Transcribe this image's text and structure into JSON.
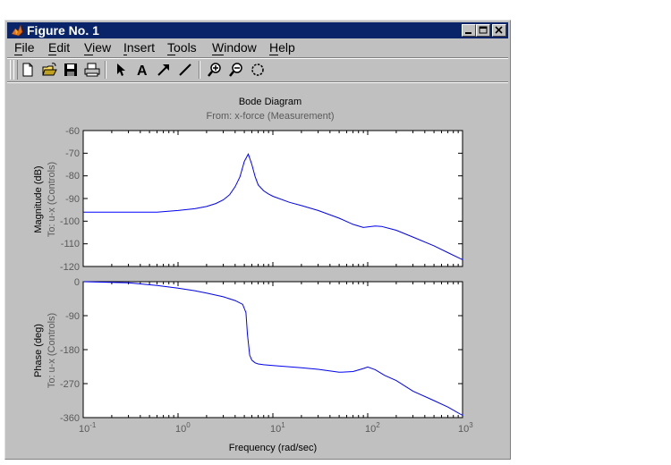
{
  "window": {
    "title": "Figure No. 1"
  },
  "menu": {
    "file": "File",
    "edit": "Edit",
    "view": "View",
    "insert": "Insert",
    "tools": "Tools",
    "window": "Window",
    "help": "Help"
  },
  "toolbar_icons": [
    "new-file-icon",
    "open-folder-icon",
    "save-icon",
    "print-icon",
    "select-arrow-icon",
    "text-insert-icon",
    "arrow-insert-icon",
    "line-insert-icon",
    "zoom-in-icon",
    "zoom-out-icon",
    "rotate-icon"
  ],
  "plot": {
    "title": "Bode Diagram",
    "subtitle": "From: x-force (Measurement)",
    "top_ylabel_1": "Magnitude (dB)",
    "top_ylabel_2": "To: u-x (Controls)",
    "bottom_ylabel_1": "Phase (deg)",
    "bottom_ylabel_2": "To: u-x (Controls)",
    "xlabel": "Frequency (rad/sec)",
    "x_ticks": [
      "10",
      "10",
      "10",
      "10",
      "10"
    ],
    "x_exponents": [
      "-1",
      "0",
      "1",
      "2",
      "3"
    ],
    "mag_ticks": [
      "-60",
      "-70",
      "-80",
      "-90",
      "-100",
      "-110",
      "-120"
    ],
    "phase_ticks": [
      "0",
      "-90",
      "-180",
      "-270",
      "-360"
    ]
  },
  "chart_data": [
    {
      "type": "line",
      "title": "Bode Diagram",
      "subtitle": "From: x-force (Measurement)",
      "xlabel": "Frequency (rad/sec)",
      "ylabel": "Magnitude (dB)",
      "xscale": "log",
      "xlim": [
        0.1,
        1000
      ],
      "ylim": [
        -120,
        -60
      ],
      "color": "#0000ff",
      "x": [
        0.1,
        0.3,
        0.6,
        1,
        1.5,
        2,
        2.5,
        3,
        3.5,
        4,
        4.5,
        5,
        5.5,
        6,
        6.5,
        7,
        8,
        9,
        10,
        15,
        20,
        30,
        50,
        70,
        90,
        100,
        120,
        140,
        200,
        300,
        500,
        700,
        1000
      ],
      "y": [
        -96,
        -96,
        -96,
        -95.3,
        -94.5,
        -93.5,
        -92.2,
        -90.6,
        -88.3,
        -84.8,
        -80.4,
        -73.6,
        -70.4,
        -75,
        -80.4,
        -84,
        -86.6,
        -88,
        -89,
        -91.7,
        -93.1,
        -95.3,
        -98.7,
        -101.4,
        -102.8,
        -102.5,
        -102.1,
        -102.3,
        -104,
        -107,
        -110.9,
        -113.9,
        -117
      ]
    },
    {
      "type": "line",
      "xlabel": "Frequency (rad/sec)",
      "ylabel": "Phase (deg)",
      "xscale": "log",
      "xlim": [
        0.1,
        1000
      ],
      "ylim": [
        -360,
        0
      ],
      "color": "#0000ff",
      "x": [
        0.1,
        0.3,
        0.6,
        1,
        1.5,
        2,
        3,
        4,
        4.8,
        5.2,
        5.4,
        5.7,
        6,
        6.5,
        7,
        8,
        10,
        20,
        30,
        50,
        70,
        90,
        100,
        120,
        150,
        200,
        300,
        500,
        700,
        1000
      ],
      "y": [
        0,
        -3,
        -10,
        -17,
        -24,
        -30,
        -40,
        -50,
        -60,
        -82,
        -140,
        -195,
        -208,
        -215,
        -218,
        -220,
        -222,
        -228,
        -232,
        -240,
        -238,
        -230,
        -226,
        -233,
        -248,
        -262,
        -290,
        -315,
        -332,
        -354
      ]
    }
  ]
}
